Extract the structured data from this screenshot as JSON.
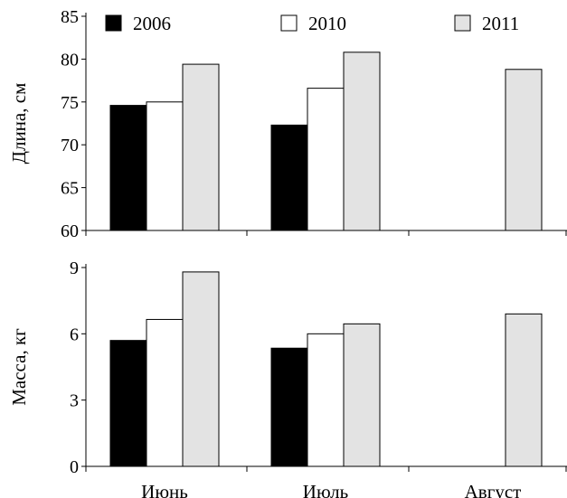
{
  "chart_data": [
    {
      "type": "bar",
      "ylabel": "Длина, см",
      "ylim": [
        60,
        85
      ],
      "yticks": [
        60,
        65,
        70,
        75,
        80,
        85
      ],
      "categories": [
        "Июнь",
        "Июль",
        "Август"
      ],
      "series": [
        {
          "name": "2006",
          "values": [
            74.6,
            72.3,
            null
          ]
        },
        {
          "name": "2010",
          "values": [
            75.0,
            76.6,
            null
          ]
        },
        {
          "name": "2011",
          "values": [
            79.4,
            80.8,
            78.8
          ]
        }
      ],
      "grid": false,
      "legend": "top"
    },
    {
      "type": "bar",
      "ylabel": "Масса, кг",
      "ylim": [
        0,
        9
      ],
      "yticks": [
        0,
        3,
        6,
        9
      ],
      "categories": [
        "Июнь",
        "Июль",
        "Август"
      ],
      "series": [
        {
          "name": "2006",
          "values": [
            5.7,
            5.35,
            null
          ]
        },
        {
          "name": "2010",
          "values": [
            6.65,
            6.0,
            null
          ]
        },
        {
          "name": "2011",
          "values": [
            8.8,
            6.45,
            6.9
          ]
        }
      ],
      "grid": false
    }
  ],
  "colors": {
    "2006": "#000000",
    "2010": "#ffffff",
    "2011": "#e3e3e3",
    "stroke": "#000000"
  }
}
